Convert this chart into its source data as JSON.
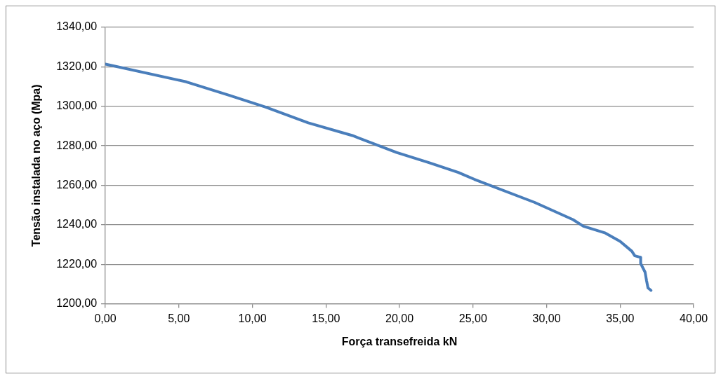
{
  "chart_data": {
    "type": "line",
    "xlabel": "Força transefreida kN",
    "ylabel": "Tensão instalada no aço (Mpa)",
    "x": [
      0,
      5.5,
      8.4,
      10.9,
      13.8,
      16.8,
      19.8,
      22,
      24,
      25.1,
      29.2,
      31.8,
      32.5,
      34,
      35,
      35.8,
      36,
      36.4,
      36.4,
      36.7,
      36.8,
      36.9,
      37.1
    ],
    "series": [
      {
        "color": "#4a7ebb",
        "values": [
          1321.4,
          1312.4,
          1305.6,
          1299.6,
          1291.6,
          1285.2,
          1276.6,
          1271.5,
          1266.5,
          1263,
          1251.3,
          1242.6,
          1239.3,
          1235.8,
          1231.6,
          1226.6,
          1224.3,
          1223.5,
          1220.4,
          1216,
          1211.7,
          1208,
          1206.8
        ]
      }
    ],
    "xlim": [
      0,
      40
    ],
    "xticks": [
      {
        "value": 0,
        "label": "0,00"
      },
      {
        "value": 5,
        "label": "5,00"
      },
      {
        "value": 10,
        "label": "10,00"
      },
      {
        "value": 15,
        "label": "15,00"
      },
      {
        "value": 20,
        "label": "20,00"
      },
      {
        "value": 25,
        "label": "25,00"
      },
      {
        "value": 30,
        "label": "30,00"
      },
      {
        "value": 35,
        "label": "35,00"
      },
      {
        "value": 40,
        "label": "40,00"
      }
    ],
    "ylim": [
      1200,
      1340
    ],
    "yticks": [
      {
        "value": 1200,
        "label": "1200,00"
      },
      {
        "value": 1220,
        "label": "1220,00"
      },
      {
        "value": 1240,
        "label": "1240,00"
      },
      {
        "value": 1260,
        "label": "1260,00"
      },
      {
        "value": 1280,
        "label": "1280,00"
      },
      {
        "value": 1300,
        "label": "1300,00"
      },
      {
        "value": 1320,
        "label": "1320,00"
      },
      {
        "value": 1340,
        "label": "1340,00"
      }
    ],
    "grid": "y",
    "legend": false,
    "marker": "none",
    "line_style": "solid"
  }
}
